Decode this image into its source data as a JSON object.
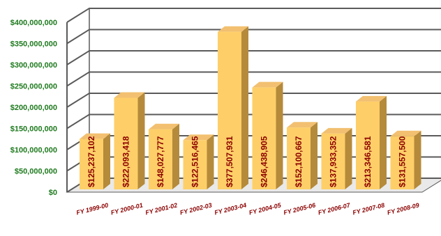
{
  "chart_data": {
    "type": "bar",
    "title": "",
    "xlabel": "",
    "ylabel": "",
    "categories": [
      "FY 1999-00",
      "FY 2000-01",
      "FY 2001-02",
      "FY 2002-03",
      "FY 2003-04",
      "FY 2004-05",
      "FY 2005-06",
      "FY 2006-07",
      "FY 2007-08",
      "FY 2008-09"
    ],
    "values": [
      125237102,
      222093418,
      148027777,
      122516465,
      377507931,
      246438905,
      152100667,
      137933352,
      213346581,
      131557500
    ],
    "value_labels": [
      "$125,237,102",
      "$222,093,418",
      "$148,027,777",
      "$122,516,465",
      "$377,507,931",
      "$246,438,905",
      "$152,100,667",
      "$137,933,352",
      "$213,346,581",
      "$131,557,500"
    ],
    "ylim": [
      0,
      400000000
    ],
    "y_ticks": [
      0,
      50000000,
      100000000,
      150000000,
      200000000,
      250000000,
      300000000,
      350000000,
      400000000
    ],
    "y_tick_labels": [
      "$0",
      "$50,000,000",
      "$100,000,000",
      "$150,000,000",
      "$200,000,000",
      "$250,000,000",
      "$300,000,000",
      "$350,000,000",
      "$400,000,000"
    ],
    "grid": true,
    "style": "3d-bar",
    "colors": {
      "bar_front": "#fecf68",
      "bar_top": "#f2c070",
      "bar_side": "#b58a3a",
      "gridline": "#5a5a5a",
      "wall": "#ffffff",
      "ytick_text": "#1e7a1e",
      "xtick_text": "#8b0000",
      "value_text": "#8b0000"
    }
  }
}
